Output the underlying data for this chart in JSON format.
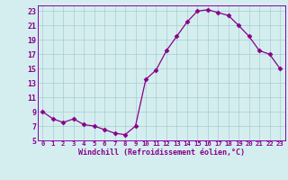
{
  "x": [
    0,
    1,
    2,
    3,
    4,
    5,
    6,
    7,
    8,
    9,
    10,
    11,
    12,
    13,
    14,
    15,
    16,
    17,
    18,
    19,
    20,
    21,
    22,
    23
  ],
  "y": [
    9,
    8,
    7.5,
    8,
    7.2,
    7,
    6.5,
    6,
    5.8,
    7,
    13.5,
    14.8,
    17.5,
    19.5,
    21.5,
    23,
    23.2,
    22.8,
    22.4,
    21,
    19.5,
    17.5,
    17,
    15
  ],
  "xlim": [
    -0.5,
    23.5
  ],
  "ylim": [
    5,
    23.8
  ],
  "yticks": [
    5,
    7,
    9,
    11,
    13,
    15,
    17,
    19,
    21,
    23
  ],
  "xticks": [
    0,
    1,
    2,
    3,
    4,
    5,
    6,
    7,
    8,
    9,
    10,
    11,
    12,
    13,
    14,
    15,
    16,
    17,
    18,
    19,
    20,
    21,
    22,
    23
  ],
  "xlabel": "Windchill (Refroidissement éolien,°C)",
  "line_color": "#880088",
  "marker": "D",
  "marker_size": 2.5,
  "bg_color": "#d4eef0",
  "grid_color": "#aacccc",
  "border_color": "#8800aa"
}
